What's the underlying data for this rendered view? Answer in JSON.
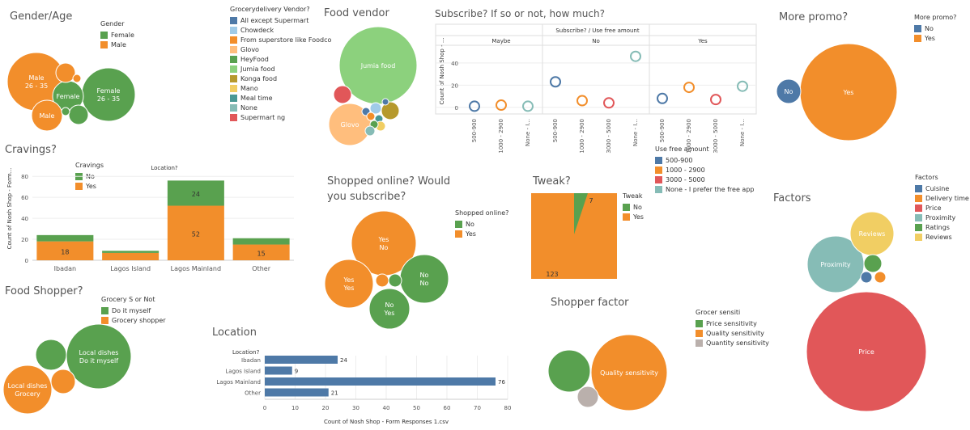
{
  "colors": {
    "blue": "#4e79a7",
    "lightblue": "#a0cbe8",
    "orange": "#f28e2b",
    "lightorange": "#ffbe7d",
    "green": "#59a14f",
    "lightgreen": "#8cd17d",
    "olive": "#b6992d",
    "yellow": "#f1ce63",
    "teal": "#499894",
    "lightteal": "#86bcb6",
    "red": "#e15759",
    "gray": "#bab0ac"
  },
  "titles": {
    "gender_age": "Gender/Age",
    "food_vendor": "Food vendor",
    "subscribe": "Subscribe? If so or not, how much?",
    "more_promo": "More promo?",
    "cravings": "Cravings?",
    "shopped_online": "Shopped online? Would you subscribe?",
    "tweak": "Tweak?",
    "factors": "Factors",
    "food_shopper": "Food Shopper?",
    "location": "Location",
    "shopper_factor": "Shopper factor"
  },
  "legends": {
    "gender": {
      "title": "Gender",
      "items": [
        {
          "label": "Female",
          "color": "#59a14f"
        },
        {
          "label": "Male",
          "color": "#f28e2b"
        }
      ]
    },
    "grocery_vendor": {
      "title": "Grocerydelivery Vendor?",
      "items": [
        {
          "label": "All except Supermart",
          "color": "#4e79a7"
        },
        {
          "label": "Chowdeck",
          "color": "#a0cbe8"
        },
        {
          "label": "From superstore like Foodco",
          "color": "#f28e2b"
        },
        {
          "label": "Glovo",
          "color": "#ffbe7d"
        },
        {
          "label": "HeyFood",
          "color": "#59a14f"
        },
        {
          "label": "Jumia food",
          "color": "#8cd17d"
        },
        {
          "label": "Konga food",
          "color": "#b6992d"
        },
        {
          "label": "Mano",
          "color": "#f1ce63"
        },
        {
          "label": "Meal time",
          "color": "#499894"
        },
        {
          "label": "None",
          "color": "#86bcb6"
        },
        {
          "label": "Supermart ng",
          "color": "#e15759"
        }
      ]
    },
    "more_promo": {
      "title": "More promo?",
      "items": [
        {
          "label": "No",
          "color": "#4e79a7"
        },
        {
          "label": "Yes",
          "color": "#f28e2b"
        }
      ]
    },
    "cravings": {
      "title": "Cravings",
      "items": [
        {
          "label": "No",
          "color": "#59a14f"
        },
        {
          "label": "Yes",
          "color": "#f28e2b"
        }
      ]
    },
    "use_free": {
      "title": "Use free amount",
      "items": [
        {
          "label": "500-900",
          "color": "#4e79a7"
        },
        {
          "label": "1000 - 2900",
          "color": "#f28e2b"
        },
        {
          "label": "3000 - 5000",
          "color": "#e15759"
        },
        {
          "label": "None - I prefer the free app",
          "color": "#86bcb6"
        }
      ]
    },
    "shopped_online": {
      "title": "Shopped online?",
      "items": [
        {
          "label": "No",
          "color": "#59a14f"
        },
        {
          "label": "Yes",
          "color": "#f28e2b"
        }
      ]
    },
    "tweak": {
      "title": "Tweak",
      "items": [
        {
          "label": "No",
          "color": "#59a14f"
        },
        {
          "label": "Yes",
          "color": "#f28e2b"
        }
      ]
    },
    "factors": {
      "title": "Factors",
      "items": [
        {
          "label": "Cuisine",
          "color": "#4e79a7"
        },
        {
          "label": "Delivery time",
          "color": "#f28e2b"
        },
        {
          "label": "Price",
          "color": "#e15759"
        },
        {
          "label": "Proximity",
          "color": "#86bcb6"
        },
        {
          "label": "Ratings",
          "color": "#59a14f"
        },
        {
          "label": "Reviews",
          "color": "#f1ce63"
        }
      ]
    },
    "grocery_s": {
      "title": "Grocery S or Not",
      "items": [
        {
          "label": "Do it myself",
          "color": "#59a14f"
        },
        {
          "label": "Grocery shopper",
          "color": "#f28e2b"
        }
      ]
    },
    "grocer_sensiti": {
      "title": "Grocer sensiti",
      "items": [
        {
          "label": "Price sensitivity",
          "color": "#59a14f"
        },
        {
          "label": "Quality sensitivity",
          "color": "#f28e2b"
        },
        {
          "label": "Quantity sensitivity",
          "color": "#bab0ac"
        }
      ]
    }
  },
  "chart_data": [
    {
      "id": "gender_age",
      "type": "bubble",
      "circles": [
        {
          "label": "Male\n26 - 35",
          "color": "#f28e2b"
        },
        {
          "label": "Female\n26 - 35",
          "color": "#59a14f"
        },
        {
          "label": "Female",
          "color": "#59a14f"
        },
        {
          "label": "Male",
          "color": "#f28e2b"
        },
        {
          "label": "",
          "color": "#f28e2b"
        },
        {
          "label": "",
          "color": "#59a14f"
        },
        {
          "label": "",
          "color": "#f28e2b"
        },
        {
          "label": "",
          "color": "#59a14f"
        }
      ]
    },
    {
      "id": "food_vendor",
      "type": "bubble",
      "circles": [
        {
          "label": "Jumia food",
          "color": "#8cd17d"
        },
        {
          "label": "Glovo",
          "color": "#ffbe7d"
        },
        {
          "label": "",
          "color": "#e15759"
        },
        {
          "label": "",
          "color": "#b6992d"
        },
        {
          "label": "",
          "color": "#a0cbe8"
        },
        {
          "label": "",
          "color": "#4e79a7"
        },
        {
          "label": "",
          "color": "#499894"
        },
        {
          "label": "",
          "color": "#f1ce63"
        },
        {
          "label": "",
          "color": "#f28e2b"
        },
        {
          "label": "",
          "color": "#59a14f"
        },
        {
          "label": "",
          "color": "#86bcb6"
        },
        {
          "label": "",
          "color": "#4e79a7"
        }
      ]
    },
    {
      "id": "subscribe",
      "type": "scatter",
      "title": "Subscribe? / Use free amount",
      "ylabel": "Count of Nosh Shop - ...",
      "yticks": [
        0,
        20,
        40
      ],
      "ylim": [
        -6,
        56
      ],
      "panels": [
        {
          "name": "Maybe",
          "points": [
            {
              "x": "500-900",
              "y": 1,
              "color": "#4e79a7"
            },
            {
              "x": "1000 - 2900",
              "y": 2,
              "color": "#f28e2b"
            },
            {
              "x": "None - I...",
              "y": 1,
              "color": "#86bcb6"
            }
          ]
        },
        {
          "name": "No",
          "points": [
            {
              "x": "500-900",
              "y": 23,
              "color": "#4e79a7"
            },
            {
              "x": "1000 - 2900",
              "y": 6,
              "color": "#f28e2b"
            },
            {
              "x": "3000 - 5000",
              "y": 4,
              "color": "#e15759"
            },
            {
              "x": "None - I...",
              "y": 46,
              "color": "#86bcb6"
            }
          ]
        },
        {
          "name": "Yes",
          "points": [
            {
              "x": "500-900",
              "y": 8,
              "color": "#4e79a7"
            },
            {
              "x": "1000 - 2900",
              "y": 18,
              "color": "#f28e2b"
            },
            {
              "x": "3000 - 5000",
              "y": 7,
              "color": "#e15759"
            },
            {
              "x": "None - I...",
              "y": 19,
              "color": "#86bcb6"
            }
          ]
        }
      ]
    },
    {
      "id": "more_promo",
      "type": "bubble",
      "circles": [
        {
          "label": "Yes",
          "color": "#f28e2b"
        },
        {
          "label": "No",
          "color": "#4e79a7"
        }
      ]
    },
    {
      "id": "cravings",
      "type": "bar",
      "title": "Location?",
      "ylabel": "Count of Nosh Shop - Form...",
      "categories": [
        "Ibadan",
        "Lagos Island",
        "Lagos Mainland",
        "Other"
      ],
      "yticks": [
        0,
        20,
        40,
        60,
        80
      ],
      "ylim": [
        0,
        84
      ],
      "series": [
        {
          "name": "Yes",
          "values": [
            18,
            7,
            52,
            15
          ],
          "color": "#f28e2b",
          "labels": [
            "18",
            "",
            "52",
            "15"
          ]
        },
        {
          "name": "No",
          "values": [
            6,
            2,
            24,
            6
          ],
          "color": "#59a14f",
          "labels": [
            "",
            "",
            "24",
            ""
          ]
        }
      ]
    },
    {
      "id": "shopped_online",
      "type": "bubble",
      "circles": [
        {
          "label": "Yes\nNo",
          "color": "#f28e2b"
        },
        {
          "label": "Yes\nYes",
          "color": "#f28e2b"
        },
        {
          "label": "No\nNo",
          "color": "#59a14f"
        },
        {
          "label": "No\nYes",
          "color": "#59a14f"
        },
        {
          "label": "",
          "color": "#f28e2b"
        },
        {
          "label": "",
          "color": "#59a14f"
        }
      ]
    },
    {
      "id": "tweak",
      "type": "pie",
      "slices": [
        {
          "label": "123",
          "value": 123,
          "color": "#f28e2b"
        },
        {
          "label": "7",
          "value": 7,
          "color": "#59a14f"
        }
      ]
    },
    {
      "id": "factors",
      "type": "bubble",
      "circles": [
        {
          "label": "Price",
          "color": "#e15759"
        },
        {
          "label": "Proximity",
          "color": "#86bcb6"
        },
        {
          "label": "Reviews",
          "color": "#f1ce63"
        },
        {
          "label": "",
          "color": "#59a14f"
        },
        {
          "label": "",
          "color": "#4e79a7"
        },
        {
          "label": "",
          "color": "#f28e2b"
        }
      ]
    },
    {
      "id": "food_shopper",
      "type": "bubble",
      "circles": [
        {
          "label": "Local dishes\nDo it myself",
          "color": "#59a14f"
        },
        {
          "label": "Local dishes\nGrocery",
          "color": "#f28e2b"
        },
        {
          "label": "",
          "color": "#59a14f"
        },
        {
          "label": "",
          "color": "#f28e2b"
        }
      ]
    },
    {
      "id": "location",
      "type": "bar",
      "orientation": "horizontal",
      "title": "Location?",
      "xlabel": "Count of Nosh Shop - Form Responses 1.csv",
      "categories": [
        "Ibadan",
        "Lagos Island",
        "Lagos Mainland",
        "Other"
      ],
      "values": [
        24,
        9,
        76,
        21
      ],
      "xticks": [
        0,
        10,
        20,
        30,
        40,
        50,
        60,
        70,
        80
      ],
      "xlim": [
        0,
        80
      ],
      "color": "#4e79a7"
    },
    {
      "id": "shopper_factor",
      "type": "bubble",
      "circles": [
        {
          "label": "Quality sensitivity",
          "color": "#f28e2b"
        },
        {
          "label": "",
          "color": "#59a14f"
        },
        {
          "label": "",
          "color": "#bab0ac"
        }
      ]
    }
  ]
}
